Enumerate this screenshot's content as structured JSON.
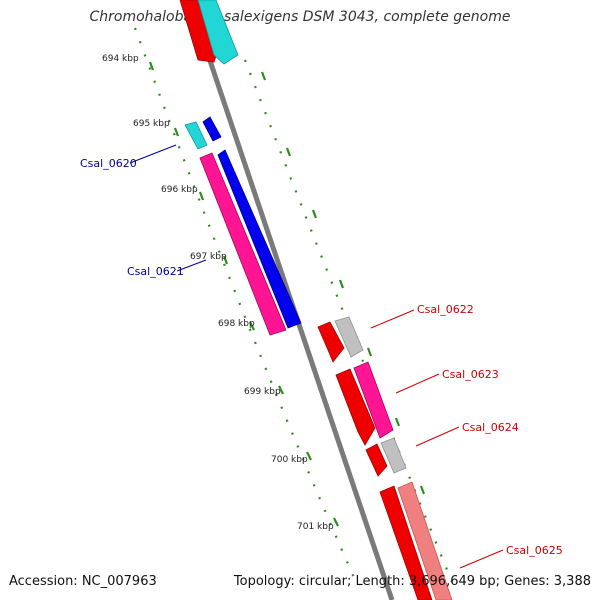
{
  "title": "Chromohalobacter salexigens DSM 3043, complete genome",
  "footer": {
    "accession": "Accession: NC_007963",
    "summary": "Topology: circular; Length: 3,696,649 bp; Genes: 3,388"
  },
  "scale": {
    "unit": "kbp",
    "ticks": [
      "694 kbp",
      "695 kbp",
      "696 kbp",
      "697 kbp",
      "698 kbp",
      "699 kbp",
      "700 kbp",
      "701 kbp"
    ]
  },
  "colors": {
    "backbone": "#7a7a7a",
    "dotted_ring": "#2e8b1e",
    "label_blue": "#000099",
    "label_red": "#cc0000",
    "red": "#ee0000",
    "cyan": "#22d6d6",
    "blue": "#0000ee",
    "magenta": "#ff1493",
    "gray": "#c0c0c0",
    "pink": "#f08080"
  },
  "labels": [
    {
      "text": "Csal_0620",
      "color": "#000099"
    },
    {
      "text": "Csal_0621",
      "color": "#000099"
    },
    {
      "text": "Csal_0622",
      "color": "#cc0000"
    },
    {
      "text": "Csal_0623",
      "color": "#cc0000"
    },
    {
      "text": "Csal_0624",
      "color": "#cc0000"
    },
    {
      "text": "Csal_0625",
      "color": "#cc0000"
    }
  ]
}
